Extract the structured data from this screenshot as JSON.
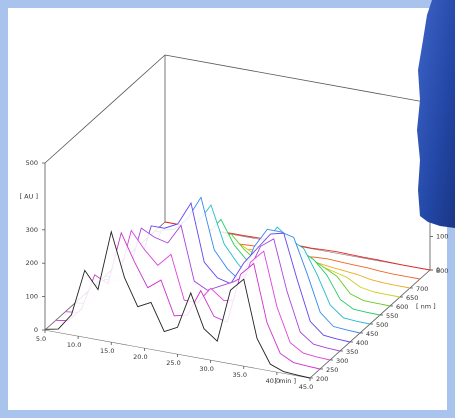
{
  "chart_data": {
    "type": "waterfall3d",
    "xlabel": "[ min ]",
    "ylabel": "[ AU ]",
    "zlabel": "[ nm ]",
    "x": [
      5,
      7,
      9,
      11,
      13,
      15,
      17,
      19,
      21,
      23,
      25,
      27,
      29,
      31,
      33,
      35,
      37,
      39,
      41,
      43,
      45
    ],
    "xlim": [
      5,
      45
    ],
    "xticks": [
      {
        "value": 5,
        "label": "5.0"
      },
      {
        "value": 10,
        "label": "10.0"
      },
      {
        "value": 15,
        "label": "15.0"
      },
      {
        "value": 20,
        "label": "20.0"
      },
      {
        "value": 25,
        "label": "25.0"
      },
      {
        "value": 30,
        "label": "30.0"
      },
      {
        "value": 35,
        "label": "35.0"
      },
      {
        "value": 40,
        "label": "40.0"
      },
      {
        "value": 45,
        "label": "45.0"
      }
    ],
    "ylim": [
      0,
      500
    ],
    "yticks": [
      0,
      100,
      200,
      300,
      500
    ],
    "back_yticks": [
      0,
      100
    ],
    "zlim": [
      200,
      800
    ],
    "zticks": [
      200,
      250,
      300,
      350,
      400,
      450,
      500,
      550,
      600,
      650,
      700,
      800
    ],
    "series": [
      {
        "z": 200,
        "color": "#222222",
        "values": [
          2,
          10,
          60,
          200,
          150,
          330,
          200,
          120,
          140,
          60,
          80,
          190,
          90,
          60,
          220,
          260,
          90,
          20,
          5,
          2,
          0
        ]
      },
      {
        "z": 250,
        "color": "#cc33cc",
        "values": [
          2,
          8,
          50,
          160,
          140,
          300,
          220,
          150,
          180,
          80,
          90,
          170,
          100,
          90,
          240,
          280,
          110,
          25,
          5,
          2,
          0
        ]
      },
      {
        "z": 300,
        "color": "#dd44dd",
        "values": [
          1,
          6,
          40,
          120,
          120,
          280,
          230,
          190,
          230,
          100,
          100,
          150,
          120,
          130,
          250,
          290,
          130,
          30,
          6,
          2,
          0
        ]
      },
      {
        "z": 350,
        "color": "#aa44dd",
        "values": [
          1,
          5,
          30,
          90,
          110,
          260,
          240,
          230,
          290,
          130,
          110,
          130,
          150,
          180,
          270,
          300,
          150,
          35,
          6,
          2,
          0
        ]
      },
      {
        "z": 400,
        "color": "#6644ee",
        "values": [
          1,
          4,
          20,
          60,
          100,
          240,
          240,
          260,
          330,
          160,
          120,
          110,
          180,
          230,
          280,
          290,
          160,
          40,
          6,
          2,
          0
        ]
      },
      {
        "z": 450,
        "color": "#3388ee",
        "values": [
          0,
          3,
          15,
          40,
          80,
          200,
          210,
          250,
          320,
          170,
          120,
          90,
          200,
          260,
          260,
          250,
          150,
          40,
          5,
          2,
          0
        ]
      },
      {
        "z": 500,
        "color": "#22bbcc",
        "values": [
          0,
          2,
          10,
          25,
          60,
          150,
          170,
          210,
          270,
          160,
          110,
          70,
          180,
          240,
          210,
          190,
          120,
          35,
          4,
          1,
          0
        ]
      },
      {
        "z": 550,
        "color": "#22cc66",
        "values": [
          0,
          2,
          6,
          15,
          40,
          100,
          120,
          150,
          200,
          130,
          90,
          50,
          140,
          180,
          150,
          130,
          90,
          25,
          3,
          1,
          0
        ]
      },
      {
        "z": 600,
        "color": "#66cc22",
        "values": [
          0,
          1,
          4,
          10,
          25,
          60,
          80,
          100,
          130,
          90,
          60,
          30,
          90,
          120,
          100,
          80,
          60,
          15,
          2,
          1,
          0
        ]
      },
      {
        "z": 650,
        "color": "#cccc22",
        "values": [
          0,
          1,
          2,
          5,
          12,
          30,
          40,
          50,
          70,
          50,
          35,
          15,
          50,
          60,
          50,
          40,
          30,
          8,
          1,
          0,
          0
        ]
      },
      {
        "z": 700,
        "color": "#eeaa22",
        "values": [
          0,
          0,
          1,
          2,
          5,
          12,
          16,
          20,
          30,
          22,
          15,
          8,
          20,
          25,
          20,
          16,
          12,
          4,
          1,
          0,
          0
        ]
      },
      {
        "z": 750,
        "color": "#ee6622",
        "values": [
          0,
          0,
          0,
          1,
          2,
          5,
          6,
          8,
          10,
          8,
          6,
          3,
          8,
          10,
          8,
          6,
          5,
          2,
          0,
          0,
          0
        ]
      },
      {
        "z": 800,
        "color": "#ee2222",
        "values": [
          0,
          0,
          0,
          0,
          1,
          2,
          2,
          3,
          4,
          3,
          2,
          1,
          3,
          4,
          3,
          2,
          2,
          1,
          0,
          0,
          0
        ]
      }
    ]
  }
}
